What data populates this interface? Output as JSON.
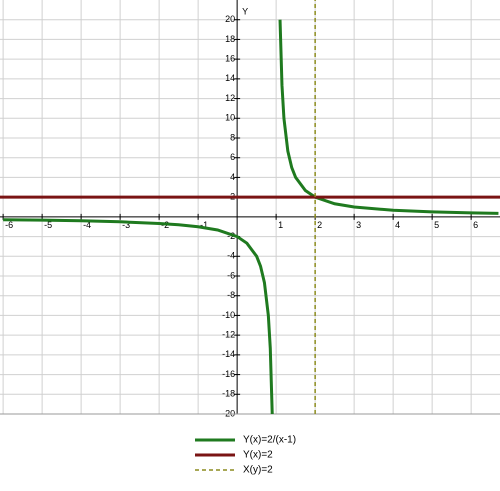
{
  "chart_data": {
    "type": "line",
    "y_axis_label": "Y",
    "xlim": [
      -6.08,
      6.74
    ],
    "ylim": [
      -20,
      22
    ],
    "xticks": [
      -6,
      -5,
      -4,
      -3,
      -2,
      -1,
      1,
      2,
      3,
      4,
      5,
      6
    ],
    "yticks": [
      -20,
      -18,
      -16,
      -14,
      -12,
      -10,
      -8,
      -6,
      -4,
      -2,
      2,
      4,
      6,
      8,
      10,
      12,
      14,
      16,
      18,
      20
    ],
    "grid": true,
    "legend": "bottom",
    "series": [
      {
        "name": "Y(x)=2/(x-1)",
        "color": "#1f7a1f",
        "dash": false,
        "x": [
          -6,
          -5,
          -4,
          -3,
          -2,
          -1.5,
          -1,
          -0.5,
          0,
          0.25,
          0.5,
          0.6,
          0.7,
          0.8,
          0.85,
          0.9,
          1,
          1.1,
          1.15,
          1.2,
          1.3,
          1.4,
          1.5,
          1.75,
          2,
          2.5,
          3,
          4,
          5,
          6,
          6.7
        ],
        "values": [
          -0.29,
          -0.33,
          -0.4,
          -0.5,
          -0.67,
          -0.8,
          -1,
          -1.33,
          -2,
          -2.67,
          -4,
          -5,
          -6.67,
          -10,
          -13.33,
          -20,
          null,
          20,
          13.33,
          10,
          6.67,
          5,
          4,
          2.67,
          2,
          1.33,
          1,
          0.67,
          0.5,
          0.4,
          0.35
        ]
      },
      {
        "name": "Y(x)=2",
        "color": "#7a1414",
        "dash": false,
        "x": [
          -6.08,
          6.74
        ],
        "values": [
          2,
          2
        ]
      },
      {
        "name": "X(y)=2",
        "color": "#8c8c1e",
        "dash": true,
        "x": [
          2,
          2
        ],
        "values": [
          -20,
          22
        ]
      }
    ]
  }
}
